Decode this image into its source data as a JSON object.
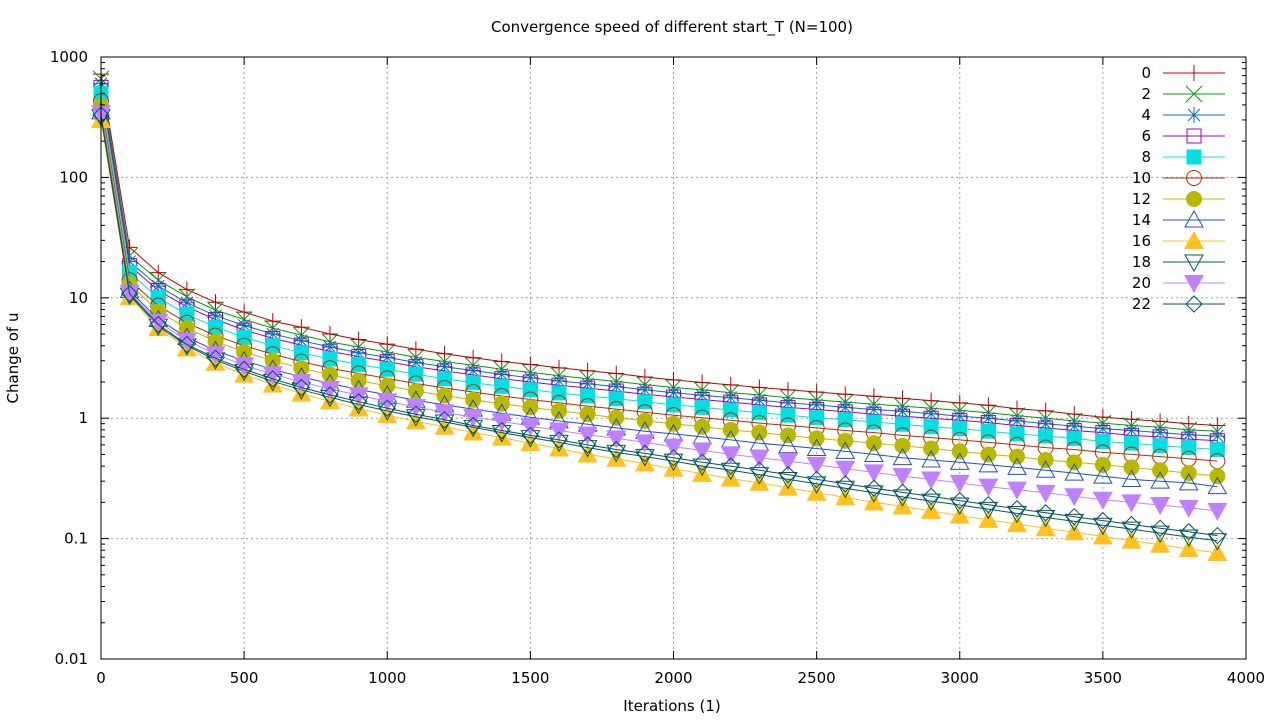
{
  "chart_data": {
    "type": "line",
    "title": "Convergence speed of different start_T (N=100)",
    "xlabel": "Iterations (1)",
    "ylabel": "Change of u",
    "xlim": [
      0,
      4000
    ],
    "ylim": [
      0.01,
      1000
    ],
    "yscale": "log",
    "grid": true,
    "legend_position": "top-right",
    "x_ticks": [
      "0",
      "500",
      "1000",
      "1500",
      "2000",
      "2500",
      "3000",
      "3500",
      "4000"
    ],
    "y_ticks": [
      "0.01",
      "0.1",
      "1",
      "10",
      "100",
      "1000"
    ],
    "x": [
      0,
      100,
      200,
      300,
      400,
      500,
      600,
      700,
      800,
      900,
      1000,
      1100,
      1200,
      1300,
      1400,
      1500,
      1600,
      1700,
      1800,
      1900,
      2000,
      2100,
      2200,
      2300,
      2400,
      2500,
      2600,
      2700,
      2800,
      2900,
      3000,
      3100,
      3200,
      3300,
      3400,
      3500,
      3600,
      3700,
      3800,
      3900
    ],
    "series": [
      {
        "name": "0",
        "color": "#c00000",
        "marker": "plus",
        "values": [
          720,
          26.2,
          16.2,
          11.7,
          9.18,
          7.6,
          6.4,
          5.7,
          5.0,
          4.5,
          4.12,
          3.74,
          3.43,
          3.18,
          2.96,
          2.79,
          2.62,
          2.48,
          2.35,
          2.2,
          2.08,
          1.98,
          1.89,
          1.8,
          1.72,
          1.65,
          1.58,
          1.52,
          1.46,
          1.4,
          1.34,
          1.28,
          1.2,
          1.15,
          1.08,
          1.02,
          0.98,
          0.94,
          0.9,
          0.87
        ]
      },
      {
        "name": "2",
        "color": "#009e00",
        "marker": "cross",
        "values": [
          660,
          22.3,
          14.0,
          10.2,
          7.9,
          6.6,
          5.6,
          4.9,
          4.3,
          3.9,
          3.55,
          3.2,
          2.96,
          2.75,
          2.55,
          2.4,
          2.26,
          2.13,
          2.02,
          1.9,
          1.8,
          1.72,
          1.63,
          1.56,
          1.48,
          1.42,
          1.36,
          1.31,
          1.26,
          1.21,
          1.16,
          1.11,
          1.05,
          1.0,
          0.95,
          0.91,
          0.87,
          0.84,
          0.8,
          0.78
        ]
      },
      {
        "name": "4",
        "color": "#0070c0",
        "marker": "star",
        "values": [
          600,
          20.0,
          12.5,
          9.1,
          7.1,
          5.9,
          5.0,
          4.4,
          3.9,
          3.5,
          3.2,
          2.9,
          2.68,
          2.49,
          2.31,
          2.17,
          2.04,
          1.93,
          1.83,
          1.72,
          1.63,
          1.55,
          1.48,
          1.41,
          1.34,
          1.29,
          1.23,
          1.18,
          1.14,
          1.09,
          1.04,
          1.0,
          0.95,
          0.9,
          0.86,
          0.82,
          0.79,
          0.76,
          0.73,
          0.71
        ]
      },
      {
        "name": "6",
        "color": "#a000c8",
        "marker": "square-open",
        "values": [
          560,
          18.5,
          11.5,
          8.4,
          6.6,
          5.4,
          4.6,
          4.05,
          3.6,
          3.25,
          2.95,
          2.68,
          2.47,
          2.29,
          2.13,
          2.0,
          1.88,
          1.78,
          1.68,
          1.58,
          1.5,
          1.43,
          1.36,
          1.29,
          1.23,
          1.18,
          1.13,
          1.08,
          1.04,
          1.0,
          0.96,
          0.92,
          0.87,
          0.83,
          0.79,
          0.76,
          0.72,
          0.7,
          0.67,
          0.65
        ]
      },
      {
        "name": "8",
        "color": "#00e0e0",
        "marker": "square-filled",
        "values": [
          500,
          16.2,
          10.0,
          7.3,
          5.7,
          4.7,
          4.0,
          3.5,
          3.1,
          2.8,
          2.55,
          2.32,
          2.13,
          1.97,
          1.84,
          1.72,
          1.62,
          1.53,
          1.45,
          1.37,
          1.29,
          1.23,
          1.17,
          1.11,
          1.06,
          1.01,
          0.97,
          0.93,
          0.89,
          0.85,
          0.82,
          0.78,
          0.74,
          0.71,
          0.68,
          0.64,
          0.62,
          0.59,
          0.57,
          0.55
        ]
      },
      {
        "name": "10",
        "color": "#b03000",
        "marker": "circle-open",
        "values": [
          430,
          14.0,
          8.6,
          6.2,
          4.85,
          4.0,
          3.4,
          2.95,
          2.6,
          2.35,
          2.14,
          1.94,
          1.78,
          1.65,
          1.53,
          1.43,
          1.34,
          1.26,
          1.19,
          1.12,
          1.06,
          1.01,
          0.96,
          0.91,
          0.87,
          0.83,
          0.79,
          0.76,
          0.72,
          0.69,
          0.66,
          0.63,
          0.6,
          0.57,
          0.55,
          0.52,
          0.5,
          0.48,
          0.46,
          0.44
        ]
      },
      {
        "name": "12",
        "color": "#b8b800",
        "marker": "circle-filled",
        "values": [
          390,
          13.0,
          7.7,
          5.6,
          4.35,
          3.55,
          3.0,
          2.6,
          2.3,
          2.05,
          1.86,
          1.68,
          1.54,
          1.42,
          1.32,
          1.23,
          1.15,
          1.08,
          1.01,
          0.95,
          0.9,
          0.85,
          0.8,
          0.76,
          0.72,
          0.68,
          0.65,
          0.62,
          0.59,
          0.56,
          0.53,
          0.5,
          0.48,
          0.45,
          0.43,
          0.41,
          0.39,
          0.37,
          0.35,
          0.33
        ]
      },
      {
        "name": "14",
        "color": "#2050c8",
        "marker": "triangle-up-open",
        "values": [
          350,
          11.5,
          6.6,
          4.7,
          3.65,
          3.0,
          2.55,
          2.2,
          1.94,
          1.73,
          1.56,
          1.41,
          1.29,
          1.19,
          1.1,
          1.02,
          0.95,
          0.89,
          0.83,
          0.78,
          0.74,
          0.7,
          0.66,
          0.62,
          0.59,
          0.56,
          0.53,
          0.5,
          0.47,
          0.45,
          0.43,
          0.41,
          0.39,
          0.37,
          0.35,
          0.33,
          0.31,
          0.3,
          0.29,
          0.27
        ]
      },
      {
        "name": "16",
        "color": "#ffc020",
        "marker": "triangle-up-filled",
        "values": [
          300,
          10.1,
          5.6,
          3.8,
          2.88,
          2.3,
          1.9,
          1.6,
          1.38,
          1.2,
          1.06,
          0.94,
          0.85,
          0.76,
          0.69,
          0.62,
          0.56,
          0.5,
          0.46,
          0.42,
          0.38,
          0.345,
          0.315,
          0.29,
          0.265,
          0.24,
          0.22,
          0.2,
          0.185,
          0.17,
          0.155,
          0.143,
          0.132,
          0.122,
          0.113,
          0.104,
          0.096,
          0.089,
          0.082,
          0.076
        ]
      },
      {
        "name": "18",
        "color": "#006040",
        "marker": "triangle-down-open",
        "values": [
          320,
          10.5,
          5.8,
          4.0,
          3.05,
          2.45,
          2.02,
          1.72,
          1.49,
          1.3,
          1.15,
          1.03,
          0.93,
          0.84,
          0.76,
          0.69,
          0.63,
          0.57,
          0.52,
          0.48,
          0.44,
          0.4,
          0.37,
          0.34,
          0.31,
          0.285,
          0.262,
          0.24,
          0.222,
          0.205,
          0.19,
          0.175,
          0.162,
          0.15,
          0.139,
          0.129,
          0.12,
          0.111,
          0.103,
          0.096
        ]
      },
      {
        "name": "20",
        "color": "#c080ff",
        "marker": "triangle-down-filled",
        "values": [
          340,
          11.0,
          6.3,
          4.4,
          3.4,
          2.75,
          2.32,
          2.0,
          1.75,
          1.55,
          1.38,
          1.24,
          1.12,
          1.02,
          0.94,
          0.86,
          0.79,
          0.73,
          0.68,
          0.63,
          0.58,
          0.54,
          0.5,
          0.47,
          0.44,
          0.41,
          0.38,
          0.355,
          0.33,
          0.31,
          0.29,
          0.27,
          0.255,
          0.24,
          0.225,
          0.21,
          0.2,
          0.19,
          0.18,
          0.17
        ]
      },
      {
        "name": "22",
        "color": "#005070",
        "marker": "diamond-open",
        "values": [
          330,
          10.8,
          6.0,
          4.1,
          3.15,
          2.55,
          2.12,
          1.8,
          1.56,
          1.37,
          1.21,
          1.08,
          0.97,
          0.87,
          0.79,
          0.72,
          0.66,
          0.6,
          0.55,
          0.51,
          0.47,
          0.43,
          0.4,
          0.37,
          0.34,
          0.31,
          0.285,
          0.262,
          0.242,
          0.224,
          0.207,
          0.191,
          0.177,
          0.164,
          0.152,
          0.141,
          0.131,
          0.122,
          0.114,
          0.106
        ]
      }
    ]
  }
}
